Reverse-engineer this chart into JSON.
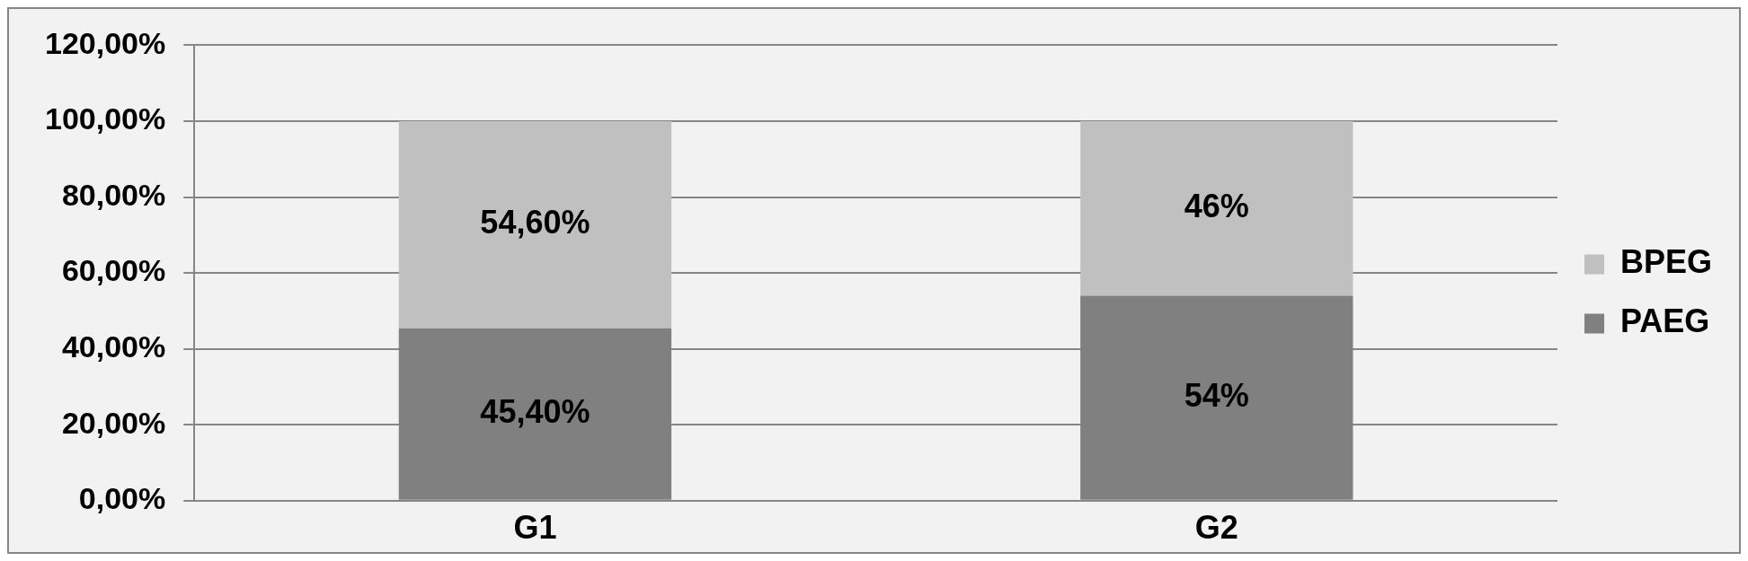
{
  "chart_data": {
    "type": "bar",
    "stacked": true,
    "categories": [
      "G1",
      "G2"
    ],
    "series": [
      {
        "name": "PAEG",
        "color": "#808080",
        "values": [
          45.4,
          54
        ],
        "value_labels": [
          "45,40%",
          "54%"
        ]
      },
      {
        "name": "BPEG",
        "color": "#c0c0c0",
        "values": [
          54.6,
          46
        ],
        "value_labels": [
          "54,60%",
          "46%"
        ]
      }
    ],
    "ylim": [
      0,
      120
    ],
    "yticks": [
      {
        "value": 0,
        "label": "0,00%"
      },
      {
        "value": 20,
        "label": "20,00%"
      },
      {
        "value": 40,
        "label": "40,00%"
      },
      {
        "value": 60,
        "label": "60,00%"
      },
      {
        "value": 80,
        "label": "80,00%"
      },
      {
        "value": 100,
        "label": "100,00%"
      },
      {
        "value": 120,
        "label": "120,00%"
      }
    ],
    "grid": "y",
    "legend": "right"
  }
}
